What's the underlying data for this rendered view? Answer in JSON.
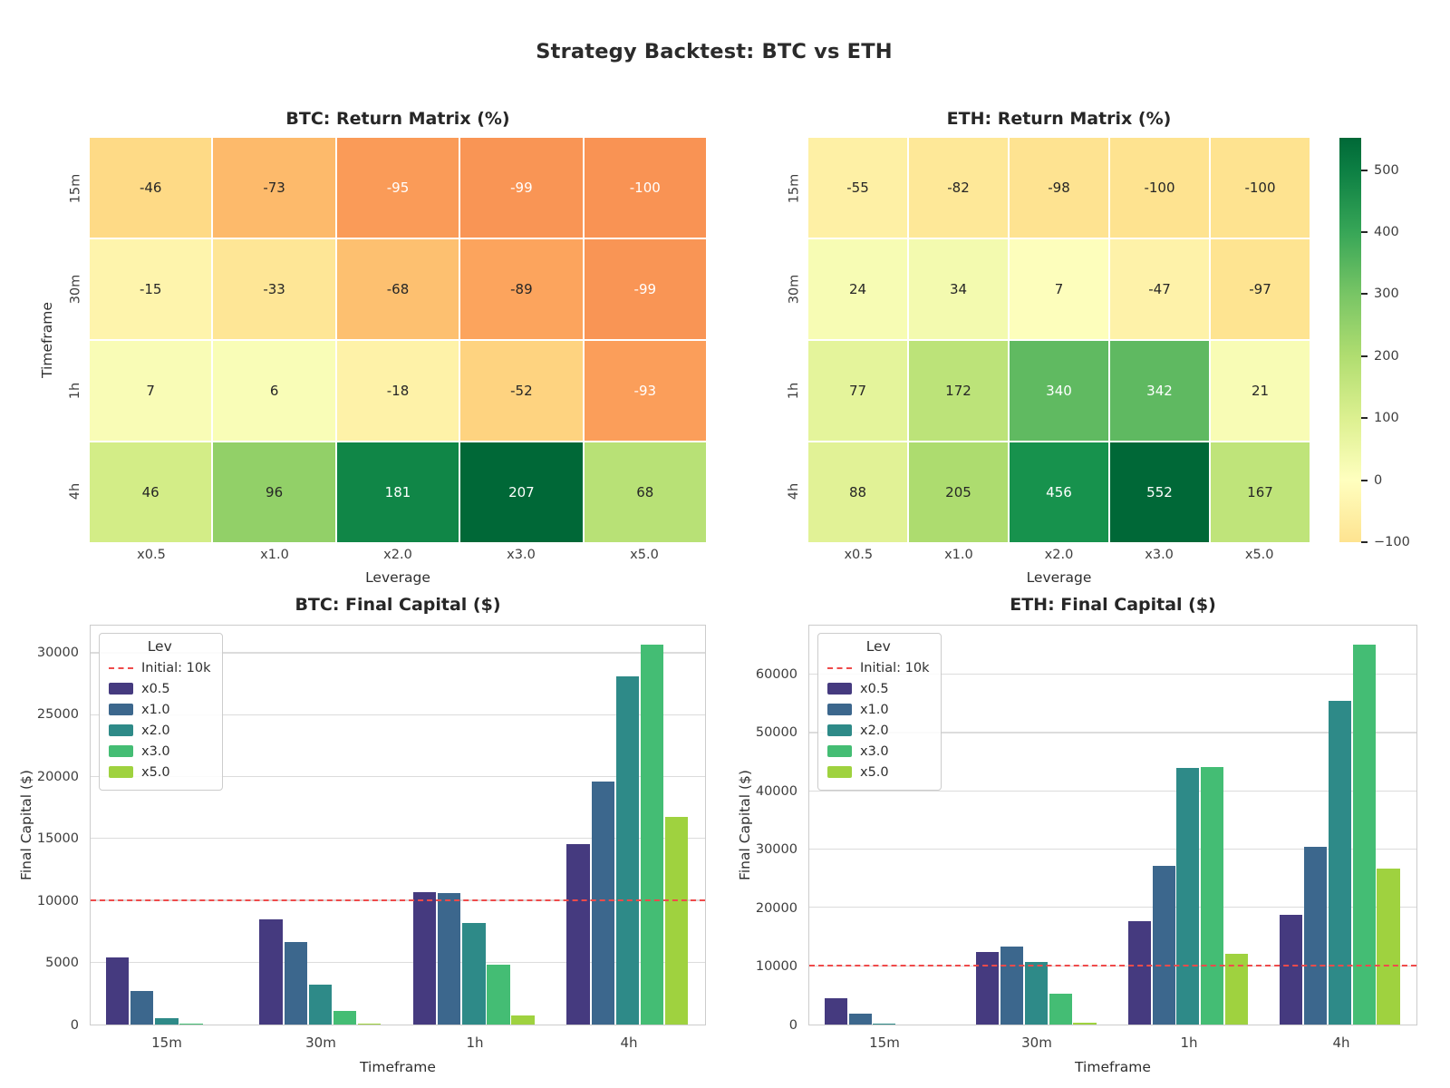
{
  "figure": {
    "title": "Strategy Backtest: BTC vs ETH"
  },
  "palette": {
    "leverage_colors": [
      "#453a7f",
      "#3c678d",
      "#2e8a88",
      "#44bd74",
      "#9fd23f"
    ],
    "ref_line_color": "#ef4b4b",
    "grid_color": "#dcdcdc",
    "spine_color": "#cccccc",
    "text_color": "#2e2e2e"
  },
  "chart_data": [
    {
      "id": "btc-return-heatmap",
      "type": "heatmap",
      "title": "BTC: Return Matrix (%)",
      "xlabel": "Leverage",
      "ylabel": "Timeframe",
      "row_labels": [
        "15m",
        "30m",
        "1h",
        "4h"
      ],
      "col_labels": [
        "x0.5",
        "x1.0",
        "x2.0",
        "x3.0",
        "x5.0"
      ],
      "values": [
        [
          -46,
          -73,
          -95,
          -99,
          -100
        ],
        [
          -15,
          -33,
          -68,
          -89,
          -99
        ],
        [
          7,
          6,
          -18,
          -52,
          -93
        ],
        [
          46,
          96,
          181,
          207,
          68
        ]
      ],
      "cell_colors": [
        [
          "#feda86",
          "#fdba6b",
          "#fa9b58",
          "#f99555",
          "#f99354"
        ],
        [
          "#fef4ac",
          "#fee696",
          "#fdc070",
          "#fca45d",
          "#f99555"
        ],
        [
          "#f9fcb6",
          "#f9fdb7",
          "#fef2a8",
          "#fed380",
          "#fb9e5a"
        ],
        [
          "#d3ed87",
          "#92d068",
          "#108647",
          "#006837",
          "#b8e176"
        ]
      ]
    },
    {
      "id": "eth-return-heatmap",
      "type": "heatmap",
      "title": "ETH: Return Matrix (%)",
      "xlabel": "Leverage",
      "ylabel": "",
      "row_labels": [
        "15m",
        "30m",
        "1h",
        "4h"
      ],
      "col_labels": [
        "x0.5",
        "x1.0",
        "x2.0",
        "x3.0",
        "x5.0"
      ],
      "values": [
        [
          -55,
          -82,
          -98,
          -100,
          -100
        ],
        [
          24,
          34,
          7,
          -47,
          -97
        ],
        [
          77,
          172,
          340,
          342,
          21
        ],
        [
          88,
          205,
          456,
          552,
          167
        ]
      ],
      "cell_colors": [
        [
          "#fef0a5",
          "#fee898",
          "#fee391",
          "#fee390",
          "#fee390"
        ],
        [
          "#f7fcb4",
          "#f3faaf",
          "#fdfebc",
          "#fef2a9",
          "#fee491"
        ],
        [
          "#e4f49b",
          "#bce379",
          "#60ba61",
          "#5fb961",
          "#f8fcb5"
        ],
        [
          "#e1f296",
          "#addc6f",
          "#17924d",
          "#006837",
          "#bfe47a"
        ]
      ],
      "colorbar": {
        "vmin": -100,
        "vmax": 552,
        "tick_values": [
          500,
          400,
          300,
          200,
          100,
          0,
          -100
        ],
        "tick_labels": [
          "500",
          "400",
          "300",
          "200",
          "100",
          "0",
          "−100"
        ],
        "gradient": [
          [
            0,
            "#006837"
          ],
          [
            7.98,
            "#0c7f43"
          ],
          [
            23.31,
            "#37a657"
          ],
          [
            38.65,
            "#78c565"
          ],
          [
            53.99,
            "#b0dd70"
          ],
          [
            69.33,
            "#dcf090"
          ],
          [
            84.66,
            "#ffffbf"
          ],
          [
            100,
            "#fee390"
          ]
        ]
      }
    },
    {
      "id": "btc-final-capital",
      "type": "bar",
      "title": "BTC: Final Capital ($)",
      "xlabel": "Timeframe",
      "ylabel": "Final Capital ($)",
      "categories": [
        "15m",
        "30m",
        "1h",
        "4h"
      ],
      "series": [
        {
          "name": "x0.5",
          "values": [
            5400,
            8500,
            10700,
            14600
          ]
        },
        {
          "name": "x1.0",
          "values": [
            2700,
            6700,
            10600,
            19600
          ]
        },
        {
          "name": "x2.0",
          "values": [
            500,
            3200,
            8200,
            28100
          ]
        },
        {
          "name": "x3.0",
          "values": [
            100,
            1100,
            4800,
            30700
          ]
        },
        {
          "name": "x5.0",
          "values": [
            0,
            100,
            700,
            16800
          ]
        }
      ],
      "yticks": [
        0,
        5000,
        10000,
        15000,
        20000,
        25000,
        30000
      ],
      "ylim": [
        0,
        32235
      ],
      "ref_line": {
        "value": 10000,
        "label": "Initial: 10k"
      },
      "legend_title": "Lev"
    },
    {
      "id": "eth-final-capital",
      "type": "bar",
      "title": "ETH: Final Capital ($)",
      "xlabel": "Timeframe",
      "ylabel": "Final Capital ($)",
      "categories": [
        "15m",
        "30m",
        "1h",
        "4h"
      ],
      "series": [
        {
          "name": "x0.5",
          "values": [
            4500,
            12400,
            17700,
            18800
          ]
        },
        {
          "name": "x1.0",
          "values": [
            1800,
            13400,
            27200,
            30500
          ]
        },
        {
          "name": "x2.0",
          "values": [
            200,
            10700,
            44000,
            55600
          ]
        },
        {
          "name": "x3.0",
          "values": [
            0,
            5300,
            44200,
            65200
          ]
        },
        {
          "name": "x5.0",
          "values": [
            0,
            300,
            12100,
            26700
          ]
        }
      ],
      "yticks": [
        0,
        10000,
        20000,
        30000,
        40000,
        50000,
        60000
      ],
      "ylim": [
        0,
        68460
      ],
      "ref_line": {
        "value": 10000,
        "label": "Initial: 10k"
      },
      "legend_title": "Lev"
    }
  ]
}
